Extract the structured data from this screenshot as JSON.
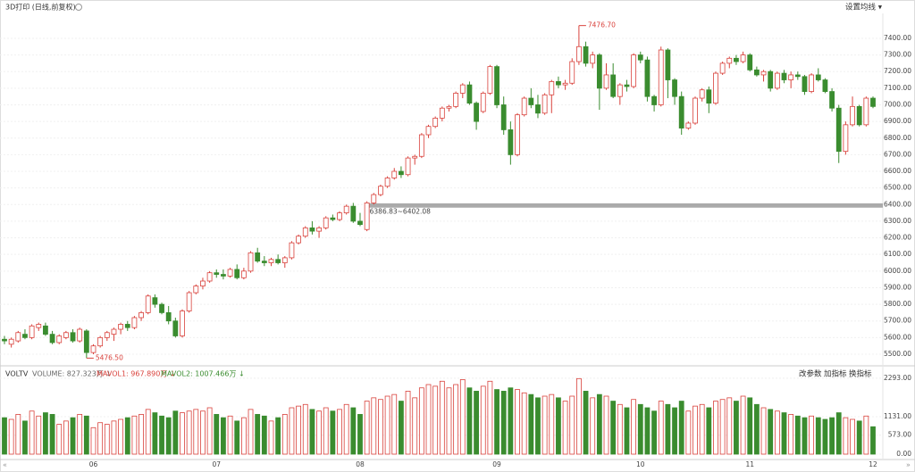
{
  "chart_data": {
    "type": "candlestick",
    "title": "3D打印 (日线,前复权)",
    "ma_button": "设置均线 ▾",
    "ylim": [
      5457,
      7550
    ],
    "yticks": [
      {
        "value": 5500,
        "label": "5500.00"
      },
      {
        "value": 5600,
        "label": "5600.00"
      },
      {
        "value": 5700,
        "label": "5700.00"
      },
      {
        "value": 5800,
        "label": "5800.00"
      },
      {
        "value": 5900,
        "label": "5900.00"
      },
      {
        "value": 6000,
        "label": "6000.00"
      },
      {
        "value": 6100,
        "label": "6100.00"
      },
      {
        "value": 6200,
        "label": "6200.00"
      },
      {
        "value": 6300,
        "label": "6300.00"
      },
      {
        "value": 6400,
        "label": "6400.00"
      },
      {
        "value": 6500,
        "label": "6500.00"
      },
      {
        "value": 6600,
        "label": "6600.00"
      },
      {
        "value": 6700,
        "label": "6700.00"
      },
      {
        "value": 6800,
        "label": "6800.00"
      },
      {
        "value": 6900,
        "label": "6900.00"
      },
      {
        "value": 7000,
        "label": "7000.00"
      },
      {
        "value": 7100,
        "label": "7100.00"
      },
      {
        "value": 7200,
        "label": "7200.00"
      },
      {
        "value": 7300,
        "label": "7300.00"
      },
      {
        "value": 7400,
        "label": "7400.00"
      }
    ],
    "up_color": "#d9423c",
    "down_color": "#3a8c2f",
    "peak_label": "7476.70",
    "low_label": "5476.50",
    "range_band": {
      "label": "6386.83~6402.08",
      "low": 6386.83,
      "high": 6402.08
    },
    "categories": [
      null,
      null,
      null,
      null,
      null,
      null,
      null,
      null,
      null,
      null,
      null,
      null,
      null,
      "06",
      null,
      null,
      null,
      null,
      null,
      null,
      null,
      null,
      null,
      null,
      null,
      null,
      null,
      null,
      null,
      null,
      null,
      "07",
      null,
      null,
      null,
      null,
      null,
      null,
      null,
      null,
      null,
      null,
      null,
      null,
      null,
      null,
      null,
      null,
      null,
      null,
      null,
      null,
      "08",
      null,
      null,
      null,
      null,
      null,
      null,
      null,
      null,
      null,
      null,
      null,
      null,
      null,
      null,
      null,
      null,
      null,
      null,
      null,
      "09",
      null,
      null,
      null,
      null,
      null,
      null,
      null,
      null,
      null,
      null,
      null,
      null,
      null,
      null,
      null,
      null,
      null,
      null,
      null,
      null,
      "10",
      null,
      null,
      null,
      null,
      null,
      null,
      null,
      null,
      null,
      null,
      null,
      null,
      null,
      null,
      null,
      "11",
      null,
      null,
      null,
      null,
      null,
      null,
      null,
      null,
      null,
      null,
      null,
      null,
      null,
      null,
      null,
      null,
      null,
      "12"
    ],
    "ohlc": [
      [
        5590,
        5610,
        5560,
        5580
      ],
      [
        5560,
        5600,
        5540,
        5590
      ],
      [
        5580,
        5640,
        5570,
        5630
      ],
      [
        5620,
        5650,
        5590,
        5600
      ],
      [
        5600,
        5680,
        5590,
        5670
      ],
      [
        5660,
        5690,
        5640,
        5680
      ],
      [
        5670,
        5690,
        5610,
        5620
      ],
      [
        5620,
        5640,
        5560,
        5570
      ],
      [
        5570,
        5620,
        5560,
        5610
      ],
      [
        5600,
        5640,
        5590,
        5630
      ],
      [
        5630,
        5650,
        5570,
        5580
      ],
      [
        5580,
        5660,
        5570,
        5650
      ],
      [
        5640,
        5650,
        5476.5,
        5510
      ],
      [
        5510,
        5560,
        5500,
        5550
      ],
      [
        5550,
        5610,
        5540,
        5600
      ],
      [
        5600,
        5640,
        5580,
        5630
      ],
      [
        5620,
        5660,
        5580,
        5650
      ],
      [
        5650,
        5690,
        5620,
        5680
      ],
      [
        5680,
        5700,
        5640,
        5660
      ],
      [
        5660,
        5730,
        5650,
        5720
      ],
      [
        5720,
        5760,
        5700,
        5750
      ],
      [
        5750,
        5860,
        5740,
        5850
      ],
      [
        5840,
        5860,
        5780,
        5800
      ],
      [
        5800,
        5810,
        5740,
        5750
      ],
      [
        5750,
        5790,
        5680,
        5700
      ],
      [
        5700,
        5720,
        5600,
        5610
      ],
      [
        5610,
        5770,
        5600,
        5760
      ],
      [
        5760,
        5880,
        5750,
        5870
      ],
      [
        5870,
        5920,
        5860,
        5910
      ],
      [
        5910,
        5960,
        5890,
        5940
      ],
      [
        5940,
        6000,
        5930,
        5990
      ],
      [
        5990,
        6010,
        5960,
        5980
      ],
      [
        5980,
        6010,
        5950,
        5970
      ],
      [
        5970,
        6020,
        5960,
        6010
      ],
      [
        6010,
        6040,
        5950,
        5960
      ],
      [
        5960,
        6020,
        5950,
        6000
      ],
      [
        6000,
        6120,
        5990,
        6110
      ],
      [
        6110,
        6140,
        6050,
        6060
      ],
      [
        6060,
        6090,
        6030,
        6050
      ],
      [
        6050,
        6080,
        6030,
        6070
      ],
      [
        6070,
        6100,
        6040,
        6050
      ],
      [
        6050,
        6090,
        6020,
        6080
      ],
      [
        6080,
        6180,
        6070,
        6170
      ],
      [
        6170,
        6220,
        6160,
        6210
      ],
      [
        6210,
        6270,
        6200,
        6260
      ],
      [
        6260,
        6300,
        6220,
        6240
      ],
      [
        6240,
        6270,
        6200,
        6260
      ],
      [
        6260,
        6330,
        6250,
        6320
      ],
      [
        6320,
        6340,
        6300,
        6310
      ],
      [
        6310,
        6360,
        6300,
        6350
      ],
      [
        6350,
        6400,
        6340,
        6390
      ],
      [
        6390,
        6410,
        6290,
        6300
      ],
      [
        6300,
        6350,
        6270,
        6280
      ],
      [
        6250,
        6420,
        6240,
        6410
      ],
      [
        6410,
        6470,
        6400,
        6460
      ],
      [
        6460,
        6520,
        6450,
        6510
      ],
      [
        6510,
        6570,
        6500,
        6560
      ],
      [
        6560,
        6620,
        6550,
        6600
      ],
      [
        6600,
        6630,
        6560,
        6580
      ],
      [
        6580,
        6690,
        6570,
        6680
      ],
      [
        6680,
        6700,
        6640,
        6690
      ],
      [
        6690,
        6830,
        6680,
        6820
      ],
      [
        6820,
        6880,
        6800,
        6870
      ],
      [
        6870,
        6930,
        6860,
        6920
      ],
      [
        6920,
        6990,
        6900,
        6980
      ],
      [
        6980,
        7000,
        6960,
        6990
      ],
      [
        6990,
        7080,
        6980,
        7070
      ],
      [
        7070,
        7130,
        7040,
        7120
      ],
      [
        7120,
        7140,
        7000,
        7010
      ],
      [
        7010,
        7020,
        6850,
        6900
      ],
      [
        6960,
        7080,
        6950,
        7070
      ],
      [
        7070,
        7240,
        7060,
        7230
      ],
      [
        7230,
        7240,
        6980,
        7000
      ],
      [
        7000,
        7050,
        6820,
        6850
      ],
      [
        6850,
        6900,
        6640,
        6700
      ],
      [
        6700,
        6950,
        6690,
        6940
      ],
      [
        6940,
        7050,
        6930,
        7040
      ],
      [
        7040,
        7100,
        6980,
        7000
      ],
      [
        7000,
        7060,
        6920,
        6950
      ],
      [
        6950,
        7070,
        6940,
        7060
      ],
      [
        7060,
        7150,
        6950,
        7140
      ],
      [
        7140,
        7170,
        7100,
        7120
      ],
      [
        7120,
        7150,
        7090,
        7130
      ],
      [
        7130,
        7280,
        7120,
        7260
      ],
      [
        7260,
        7476.7,
        7240,
        7350
      ],
      [
        7350,
        7380,
        7230,
        7250
      ],
      [
        7250,
        7320,
        7220,
        7300
      ],
      [
        7300,
        7310,
        6970,
        7100
      ],
      [
        7100,
        7250,
        7090,
        7180
      ],
      [
        7180,
        7250,
        7040,
        7050
      ],
      [
        7050,
        7130,
        7000,
        7120
      ],
      [
        7120,
        7150,
        7080,
        7110
      ],
      [
        7110,
        7310,
        7100,
        7300
      ],
      [
        7300,
        7320,
        7250,
        7270
      ],
      [
        7270,
        7290,
        7020,
        7050
      ],
      [
        7050,
        7060,
        6960,
        7000
      ],
      [
        7000,
        7350,
        6990,
        7330
      ],
      [
        7330,
        7340,
        7040,
        7150
      ],
      [
        7150,
        7160,
        7000,
        7050
      ],
      [
        7050,
        7080,
        6820,
        6860
      ],
      [
        6860,
        6900,
        6850,
        6890
      ],
      [
        6890,
        7050,
        6880,
        7040
      ],
      [
        7040,
        7100,
        7020,
        7090
      ],
      [
        7090,
        7110,
        6950,
        7010
      ],
      [
        7010,
        7200,
        7000,
        7190
      ],
      [
        7190,
        7260,
        7180,
        7250
      ],
      [
        7250,
        7290,
        7220,
        7280
      ],
      [
        7280,
        7300,
        7240,
        7260
      ],
      [
        7260,
        7320,
        7250,
        7300
      ],
      [
        7300,
        7310,
        7200,
        7210
      ],
      [
        7210,
        7230,
        7170,
        7180
      ],
      [
        7180,
        7210,
        7140,
        7200
      ],
      [
        7200,
        7210,
        7080,
        7100
      ],
      [
        7100,
        7200,
        7090,
        7190
      ],
      [
        7190,
        7210,
        7130,
        7150
      ],
      [
        7150,
        7200,
        7100,
        7180
      ],
      [
        7180,
        7200,
        7150,
        7170
      ],
      [
        7170,
        7180,
        7060,
        7080
      ],
      [
        7080,
        7190,
        7070,
        7180
      ],
      [
        7180,
        7220,
        7140,
        7150
      ],
      [
        7150,
        7160,
        7070,
        7080
      ],
      [
        7080,
        7100,
        6960,
        6980
      ],
      [
        6980,
        7000,
        6650,
        6720
      ],
      [
        6720,
        6900,
        6700,
        6880
      ],
      [
        6880,
        7050,
        6870,
        6990
      ],
      [
        6990,
        7000,
        6870,
        6880
      ],
      [
        6880,
        7050,
        6870,
        7040
      ],
      [
        7040,
        7050,
        6980,
        6990
      ]
    ],
    "volume_panel": {
      "name": "VOLTV",
      "volume_text": "VOLUME: 827.323万 ↓",
      "mavol1_text": "MAVOL1: 967.890万 ↓",
      "mavol2_text": "MAVOL2: 1007.466万 ↓",
      "buttons": [
        "改参数",
        "加指标",
        "换指标"
      ],
      "ylim": [
        0,
        2450
      ],
      "yticks": [
        {
          "value": 0,
          "label": "0.00"
        },
        {
          "value": 573,
          "label": "573.00"
        },
        {
          "value": 1131,
          "label": "1131.00"
        },
        {
          "value": 2293,
          "label": "2293.00"
        }
      ],
      "values": [
        1100,
        1050,
        1200,
        1000,
        1300,
        1150,
        1250,
        1200,
        900,
        1000,
        1100,
        1200,
        1150,
        800,
        950,
        900,
        1000,
        1050,
        1100,
        1150,
        1200,
        1350,
        1250,
        1150,
        1100,
        1300,
        1250,
        1300,
        1350,
        1300,
        1400,
        1200,
        1100,
        1150,
        1000,
        1100,
        1350,
        1200,
        1150,
        1000,
        1100,
        1200,
        1400,
        1450,
        1500,
        1350,
        1300,
        1400,
        1300,
        1350,
        1500,
        1400,
        1200,
        1600,
        1700,
        1650,
        1750,
        1800,
        1600,
        1900,
        1700,
        2000,
        2100,
        2050,
        2200,
        2000,
        2100,
        2250,
        2000,
        1900,
        2050,
        2200,
        1950,
        1900,
        2000,
        1950,
        1850,
        1800,
        1700,
        1750,
        1800,
        1700,
        1600,
        1750,
        2280,
        1900,
        1700,
        1800,
        1750,
        1600,
        1500,
        1400,
        1650,
        1500,
        1400,
        1300,
        1600,
        1500,
        1400,
        1600,
        1300,
        1450,
        1500,
        1400,
        1600,
        1650,
        1700,
        1600,
        1750,
        1700,
        1500,
        1400,
        1350,
        1300,
        1250,
        1200,
        1150,
        1100,
        1150,
        1100,
        1050,
        1100,
        1250,
        1100,
        1050,
        1000,
        1150,
        827.323
      ]
    }
  }
}
